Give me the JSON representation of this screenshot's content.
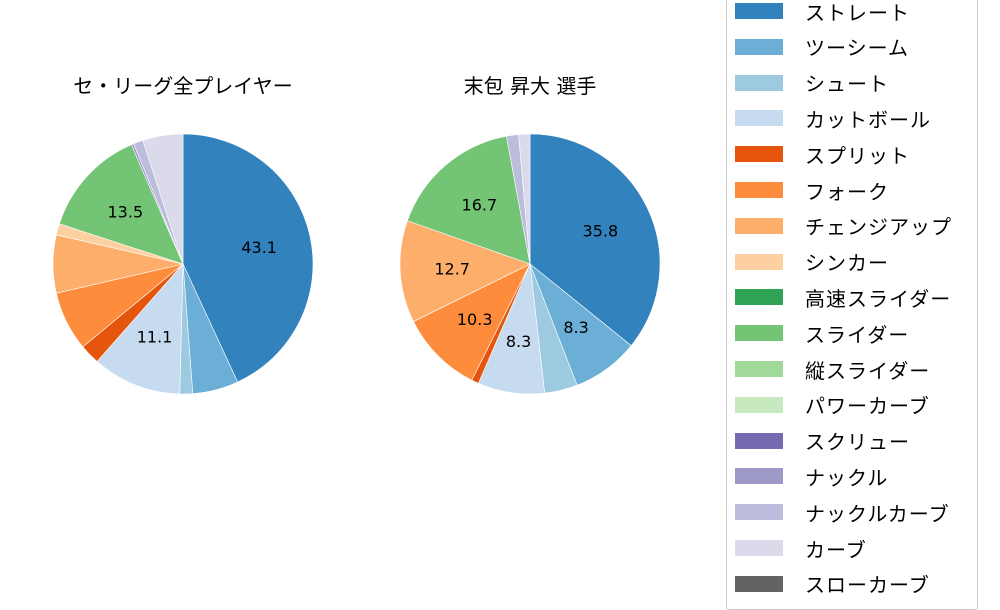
{
  "chart_data": [
    {
      "type": "pie",
      "title": "セ・リーグ全プレイヤー",
      "categories": [
        "ストレート",
        "ツーシーム",
        "シュート",
        "カットボール",
        "スプリット",
        "フォーク",
        "チェンジアップ",
        "シンカー",
        "スライダー",
        "ナックル",
        "ナックルカーブ",
        "カーブ"
      ],
      "values": [
        43.1,
        5.7,
        1.6,
        11.1,
        2.5,
        7.4,
        7.2,
        1.4,
        13.5,
        0.3,
        1.2,
        5.0
      ],
      "labels_shown": {
        "ストレート": "43.1",
        "カットボール": "11.1",
        "スライダー": "13.5"
      },
      "start_angle": 90,
      "direction": "clockwise"
    },
    {
      "type": "pie",
      "title": "末包 昇大  選手",
      "categories": [
        "ストレート",
        "ツーシーム",
        "シュート",
        "カットボール",
        "スプリット",
        "フォーク",
        "チェンジアップ",
        "スライダー",
        "ナックルカーブ",
        "カーブ"
      ],
      "values": [
        35.8,
        8.3,
        4.1,
        8.3,
        0.9,
        10.3,
        12.7,
        16.7,
        1.5,
        1.4
      ],
      "labels_shown": {
        "ストレート": "35.8",
        "ツーシーム": "8.3",
        "カットボール": "8.3",
        "フォーク": "10.3",
        "チェンジアップ": "12.7",
        "スライダー": "16.7"
      },
      "start_angle": 90,
      "direction": "clockwise"
    }
  ],
  "charts": {
    "left_title": "セ・リーグ全プレイヤー",
    "right_title": "末包 昇大  選手"
  },
  "legend": {
    "items": [
      {
        "label": "ストレート",
        "color": "#3182bd"
      },
      {
        "label": "ツーシーム",
        "color": "#6baed6"
      },
      {
        "label": "シュート",
        "color": "#9ecae1"
      },
      {
        "label": "カットボール",
        "color": "#c6dbef"
      },
      {
        "label": "スプリット",
        "color": "#e6550d"
      },
      {
        "label": "フォーク",
        "color": "#fd8d3c"
      },
      {
        "label": "チェンジアップ",
        "color": "#fdae6b"
      },
      {
        "label": "シンカー",
        "color": "#fdd0a2"
      },
      {
        "label": "高速スライダー",
        "color": "#31a354"
      },
      {
        "label": "スライダー",
        "color": "#74c476"
      },
      {
        "label": "縦スライダー",
        "color": "#a1d99b"
      },
      {
        "label": "パワーカーブ",
        "color": "#c7e9c0"
      },
      {
        "label": "スクリュー",
        "color": "#756bb1"
      },
      {
        "label": "ナックル",
        "color": "#9e9ac8"
      },
      {
        "label": "ナックルカーブ",
        "color": "#bcbddc"
      },
      {
        "label": "カーブ",
        "color": "#dadaeb"
      },
      {
        "label": "スローカーブ",
        "color": "#636363"
      }
    ]
  }
}
